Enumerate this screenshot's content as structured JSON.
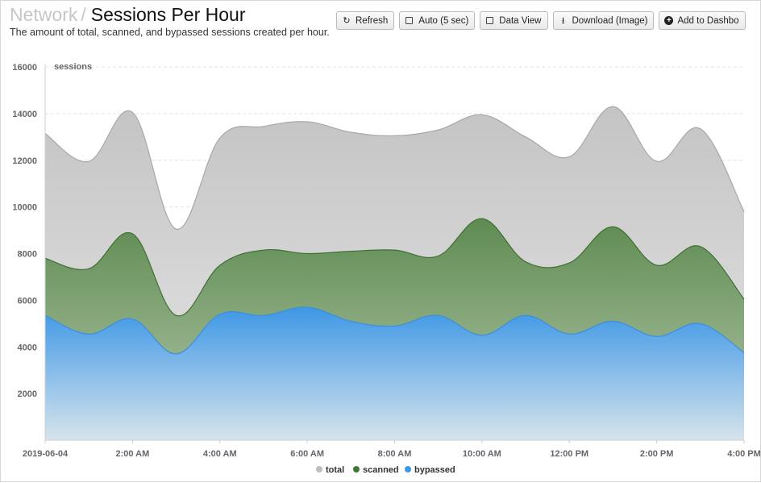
{
  "header": {
    "breadcrumb": "Network",
    "separator": "/",
    "title": "Sessions Per Hour",
    "subtitle": "The amount of total, scanned, and bypassed sessions created per hour."
  },
  "toolbar": {
    "refresh_label": "Refresh",
    "auto_label": "Auto (5 sec)",
    "data_view_label": "Data View",
    "download_label": "Download (Image)",
    "add_dashboard_label": "Add to Dashbo"
  },
  "icons": {
    "refresh": "refresh-icon",
    "auto": "checkbox-icon",
    "data_view": "checkbox-icon",
    "download": "download-icon",
    "add": "plus-circle-icon"
  },
  "chart_data": {
    "type": "area",
    "ylabel": "sessions",
    "xlabel": "",
    "ylim": [
      0,
      16000
    ],
    "yticks": [
      2000,
      4000,
      6000,
      8000,
      10000,
      12000,
      14000,
      16000
    ],
    "x": [
      "2019-06-04",
      "1:00 AM",
      "2:00 AM",
      "3:00 AM",
      "4:00 AM",
      "5:00 AM",
      "6:00 AM",
      "7:00 AM",
      "8:00 AM",
      "9:00 AM",
      "10:00 AM",
      "11:00 AM",
      "12:00 PM",
      "1:00 PM",
      "2:00 PM",
      "3:00 PM",
      "4:00 PM"
    ],
    "x_tick_labels": [
      "2019-06-04",
      "2:00 AM",
      "4:00 AM",
      "6:00 AM",
      "8:00 AM",
      "10:00 AM",
      "12:00 PM",
      "2:00 PM",
      "4:00 PM"
    ],
    "grid": true,
    "legend_position": "bottom-center",
    "series": [
      {
        "name": "total",
        "color": "#bdbdbd",
        "values": [
          13150,
          11950,
          14050,
          9050,
          12950,
          13450,
          13650,
          13200,
          13050,
          13300,
          13950,
          13000,
          12150,
          14300,
          11950,
          13350,
          9800
        ]
      },
      {
        "name": "scanned",
        "color": "#3f7a34",
        "values": [
          7800,
          7350,
          8850,
          5350,
          7500,
          8150,
          8000,
          8100,
          8150,
          7900,
          9500,
          7650,
          7600,
          9150,
          7500,
          8300,
          6050
        ]
      },
      {
        "name": "bypassed",
        "color": "#3e97e6",
        "values": [
          5350,
          4550,
          5200,
          3700,
          5400,
          5350,
          5700,
          5100,
          4900,
          5350,
          4500,
          5350,
          4550,
          5100,
          4450,
          5000,
          3750
        ]
      }
    ]
  }
}
